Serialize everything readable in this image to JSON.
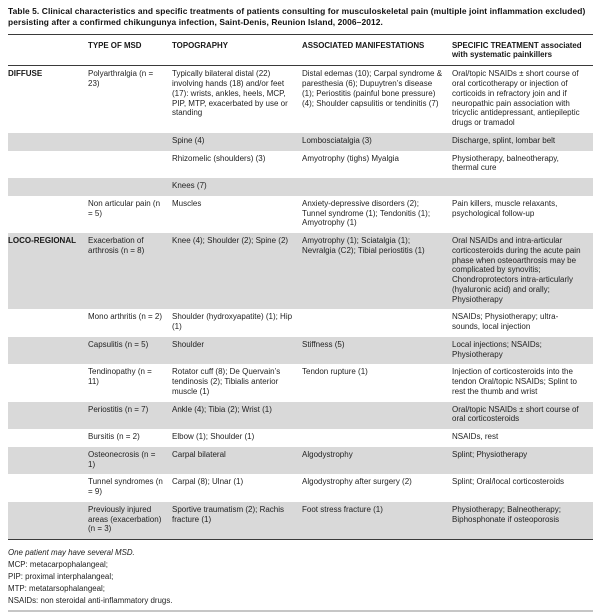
{
  "title": "Table 5. Clinical characteristics and specific treatments of patients consulting for musculoskeletal pain (multiple joint inflammation excluded) persisting after a confirmed chikungunya infection, Saint-Denis, Reunion Island, 2006–2012.",
  "colors": {
    "row_shade": "#d9d9d9",
    "rule_dark": "#3a3a3a",
    "rule_light": "#c6c6c6",
    "text": "#1f1f1f"
  },
  "table": {
    "columns": [
      "",
      "TYPE OF MSD",
      "TOPOGRAPHY",
      "ASSOCIATED MANIFESTATIONS",
      "SPECIFIC TREATMENT associated with systematic painkillers"
    ],
    "rows": [
      {
        "group": "DIFFUSE",
        "type": "Polyarthralgia (n = 23)",
        "topography": "Typically bilateral distal (22) involving hands (18) and/or feet (17): wrists, ankles, heels, MCP, PIP, MTP, exacerbated by use or standing",
        "manifestations": "Distal edemas (10); Carpal syndrome & paresthesia (6); Dupuytren’s disease (1); Periostitis (painful bone pressure) (4); Shoulder capsulitis or tendinitis (7)",
        "treatment": "Oral/topic NSAIDs ± short course of oral corticotherapy or injection of corticoids in refractory join and if neuropathic pain association with tricyclic antidepressant, antiepileptic drugs or tramadol"
      },
      {
        "group": "",
        "type": "",
        "topography": "Spine (4)",
        "manifestations": "Lombosciatalgia (3)",
        "treatment": "Discharge, splint, lombar belt"
      },
      {
        "group": "",
        "type": "",
        "topography": "Rhizomelic (shoulders) (3)",
        "manifestations": "Amyotrophy (tighs) Myalgia",
        "treatment": "Physiotherapy, balneotherapy, thermal cure"
      },
      {
        "group": "",
        "type": "",
        "topography": "Knees (7)",
        "manifestations": "",
        "treatment": ""
      },
      {
        "group": "",
        "type": "Non articular pain (n = 5)",
        "topography": "Muscles",
        "manifestations": "Anxiety-depressive disorders (2); Tunnel syndrome (1); Tendonitis (1); Amyotrophy (1)",
        "treatment": "Pain killers, muscle relaxants, psychological follow-up"
      },
      {
        "group": "LOCO-REGIONAL",
        "type": "Exacerbation of arthrosis (n = 8)",
        "topography": "Knee (4); Shoulder (2); Spine (2)",
        "manifestations": "Amyotrophy (1); Sciatalgia (1); Nevralgia (C2); Tibial periostitis (1)",
        "treatment": "Oral NSAIDs and intra-articular corticosteroids during the acute pain phase when osteoarthrosis may be complicated by synovitis; Chondroprotectors intra-articularly (hyaluronic acid) and orally; Physiotherapy"
      },
      {
        "group": "",
        "type": "Mono arthritis (n = 2)",
        "topography": "Shoulder (hydroxyapatite) (1); Hip (1)",
        "manifestations": "",
        "treatment": "NSAIDs; Physiotherapy; ultra-sounds, local injection"
      },
      {
        "group": "",
        "type": "Capsulitis (n = 5)",
        "topography": "Shoulder",
        "manifestations": "Stiffness (5)",
        "treatment": "Local injections; NSAIDs; Physiotherapy"
      },
      {
        "group": "",
        "type": "Tendinopathy (n = 11)",
        "topography": "Rotator cuff (8); De Quervain’s tendinosis (2); Tibialis anterior muscle (1)",
        "manifestations": "Tendon rupture (1)",
        "treatment": "Injection of corticosteroids into the tendon Oral/topic NSAIDs; Splint to rest the thumb and wrist"
      },
      {
        "group": "",
        "type": "Periostitis (n = 7)",
        "topography": "Ankle (4); Tibia (2); Wrist (1)",
        "manifestations": "",
        "treatment": "Oral/topic NSAIDs ± short course of oral corticosteroids"
      },
      {
        "group": "",
        "type": "Bursitis (n = 2)",
        "topography": "Elbow (1); Shoulder (1)",
        "manifestations": "",
        "treatment": "NSAIDs, rest"
      },
      {
        "group": "",
        "type": "Osteonecrosis (n = 1)",
        "topography": "Carpal bilateral",
        "manifestations": "Algodystrophy",
        "treatment": "Splint; Physiotherapy"
      },
      {
        "group": "",
        "type": "Tunnel syndromes (n = 9)",
        "topography": "Carpal (8); Ulnar (1)",
        "manifestations": "Algodystrophy after surgery (2)",
        "treatment": "Splint; Oral/local corticosteroids"
      },
      {
        "group": "",
        "type": "Previously injured areas (exacerbation) (n = 3)",
        "topography": "Sportive traumatism (2); Rachis fracture (1)",
        "manifestations": "Foot stress fracture (1)",
        "treatment": "Physiotherapy; Balneotherapy; Biphosphonate if osteoporosis"
      }
    ]
  },
  "footnotes": [
    "One patient may have several MSD.",
    "MCP: metacarpophalangeal;",
    "PIP: proximal interphalangeal;",
    "MTP: metatarsophalangeal;",
    "NSAIDs: non steroidal anti-inflammatory drugs."
  ]
}
